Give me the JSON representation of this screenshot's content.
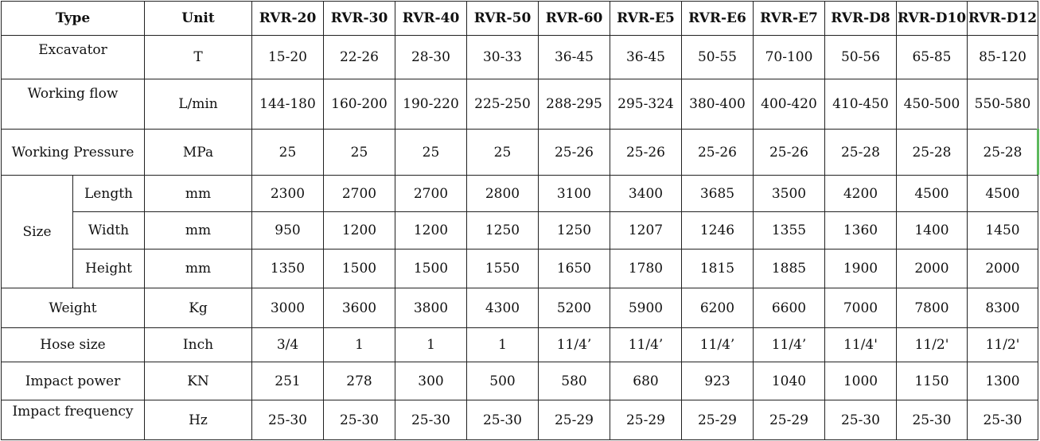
{
  "header": {
    "type": "Type",
    "unit": "Unit",
    "models": [
      "RVR-20",
      "RVR-30",
      "RVR-40",
      "RVR-50",
      "RVR-60",
      "RVR-E5",
      "RVR-E6",
      "RVR-E7",
      "RVR-D8",
      "RVR-D10",
      "RVR-D12"
    ]
  },
  "rows": {
    "excavator": {
      "label": "Excavator",
      "unit": "T",
      "values": [
        "15-20",
        "22-26",
        "28-30",
        "30-33",
        "36-45",
        "36-45",
        "50-55",
        "70-100",
        "50-56",
        "65-85",
        "85-120"
      ]
    },
    "flow": {
      "label": "Working flow",
      "unit": "L/min",
      "values": [
        "144-180",
        "160-200",
        "190-220",
        "225-250",
        "288-295",
        "295-324",
        "380-400",
        "400-420",
        "410-450",
        "450-500",
        "550-580"
      ]
    },
    "pressure": {
      "label": "Working Pressure",
      "unit": "MPa",
      "values": [
        "25",
        "25",
        "25",
        "25",
        "25-26",
        "25-26",
        "25-26",
        "25-26",
        "25-28",
        "25-28",
        "25-28"
      ]
    },
    "size": {
      "label": "Size",
      "length": {
        "label": "Length",
        "unit": "mm",
        "values": [
          "2300",
          "2700",
          "2700",
          "2800",
          "3100",
          "3400",
          "3685",
          "3500",
          "4200",
          "4500",
          "4500"
        ]
      },
      "width": {
        "label": "Width",
        "unit": "mm",
        "values": [
          "950",
          "1200",
          "1200",
          "1250",
          "1250",
          "1207",
          "1246",
          "1355",
          "1360",
          "1400",
          "1450"
        ]
      },
      "height": {
        "label": "Height",
        "unit": "mm",
        "values": [
          "1350",
          "1500",
          "1500",
          "1550",
          "1650",
          "1780",
          "1815",
          "1885",
          "1900",
          "2000",
          "2000"
        ]
      }
    },
    "weight": {
      "label": "Weight",
      "unit": "Kg",
      "values": [
        "3000",
        "3600",
        "3800",
        "4300",
        "5200",
        "5900",
        "6200",
        "6600",
        "7000",
        "7800",
        "8300"
      ]
    },
    "hose": {
      "label": "Hose size",
      "unit": "Inch",
      "values": [
        "3/4",
        "1",
        "1",
        "1",
        "11/4’",
        "11/4’",
        "11/4’",
        "11/4’",
        "11/4'",
        "11/2'",
        "11/2'"
      ]
    },
    "impact_power": {
      "label": "Impact power",
      "unit": "KN",
      "values": [
        "251",
        "278",
        "300",
        "500",
        "580",
        "680",
        "923",
        "1040",
        "1000",
        "1150",
        "1300"
      ]
    },
    "impact_freq": {
      "label": "Impact frequency",
      "unit": "Hz",
      "values": [
        "25-30",
        "25-30",
        "25-30",
        "25-30",
        "25-29",
        "25-29",
        "25-29",
        "25-29",
        "25-30",
        "25-30",
        "25-30"
      ]
    }
  },
  "colors": {
    "border": "#222222",
    "text": "#111111",
    "edge_mark": "#5cb85c"
  }
}
